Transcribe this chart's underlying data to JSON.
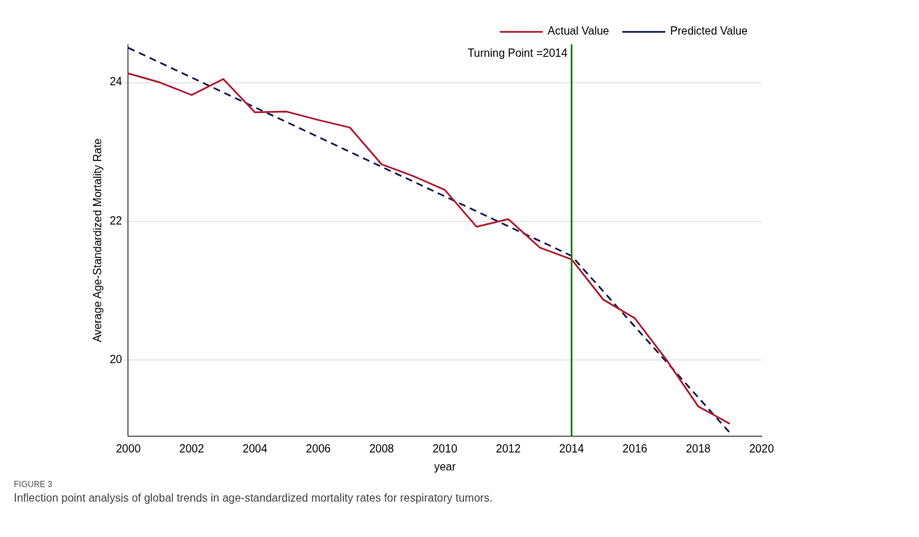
{
  "chart_data": {
    "type": "line",
    "xlabel": "year",
    "ylabel": "Average Age-Standardized Mortality Rate",
    "xlim": [
      2000,
      2020
    ],
    "xticks": [
      2000,
      2002,
      2004,
      2006,
      2008,
      2010,
      2012,
      2014,
      2016,
      2018,
      2020
    ],
    "ylim": [
      18.9,
      24.55
    ],
    "yticks": [
      20,
      22,
      24
    ],
    "series": [
      {
        "name": "Actual Value",
        "color": "#b0182e",
        "line_style": "solid",
        "x": [
          2000,
          2001,
          2002,
          2003,
          2004,
          2005,
          2006,
          2007,
          2008,
          2009,
          2010,
          2011,
          2012,
          2013,
          2014,
          2015,
          2016,
          2017,
          2018,
          2019
        ],
        "values": [
          24.13,
          24.0,
          23.82,
          24.05,
          23.57,
          23.58,
          23.46,
          23.35,
          22.82,
          22.65,
          22.45,
          21.92,
          22.03,
          21.62,
          21.45,
          20.87,
          20.6,
          20.0,
          19.33,
          19.08
        ]
      },
      {
        "name": "Predicted Value",
        "color": "#131a4d",
        "line_style": "dashed",
        "x": [
          2000,
          2014,
          2019
        ],
        "values": [
          24.5,
          21.5,
          18.95
        ]
      }
    ],
    "ref_lines": [
      {
        "axis": "x",
        "value": 2014,
        "label": "Turning Point =2014",
        "color": "#1a7a1a"
      }
    ],
    "grid": "y",
    "legend": "top right",
    "marker": "none",
    "annotations": [
      "FIGURE 3",
      "Inflection point analysis of global trends in age-standardized mortality rates for respiratory tumors."
    ]
  }
}
